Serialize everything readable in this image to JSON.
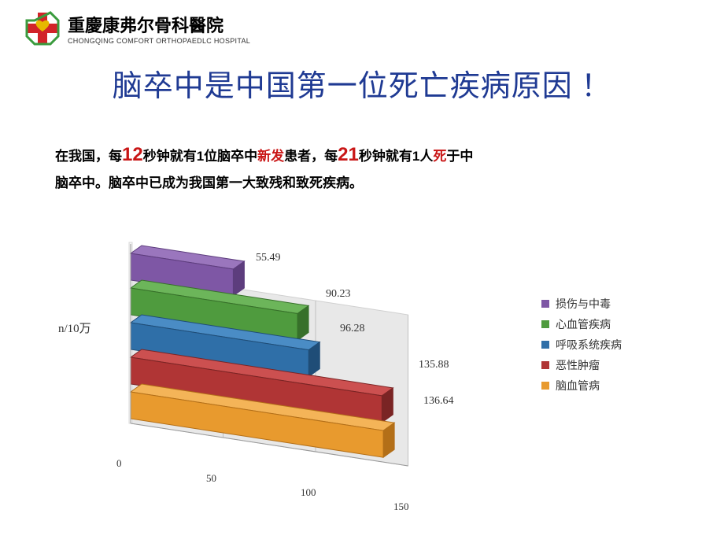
{
  "hospital": {
    "name_cn": "重慶康弗尔骨科醫院",
    "name_en": "CHONGQING COMFORT ORTHOPAEDLC HOSPITAL",
    "logo_colors": {
      "red": "#d22329",
      "green": "#3a9b3e",
      "heart": "#e6b800"
    }
  },
  "title": "脑卒中是中国第一位死亡疾病原因 ！",
  "title_color": "#1f3a93",
  "subtitle": {
    "p1a": "在我国，每",
    "n1": "12",
    "p1b": "秒钟就有1位脑卒中",
    "r1": "新发",
    "p1c": "患者，每",
    "n2": "21",
    "p1d": "秒钟就有1人",
    "r2": "死",
    "p1e": "于中",
    "line2": "脑卒中。脑卒中已成为我国第一大致残和致死疾病。",
    "red_color": "#c91616"
  },
  "chart": {
    "type": "3d-horizontal-bar",
    "ylabel": "n/10万",
    "xlim": [
      0,
      150
    ],
    "xticks": [
      0,
      50,
      100,
      150
    ],
    "background_color": "#ffffff",
    "floor_color": "#e8e8e8",
    "wall_color": "#f5f5f5",
    "grid_color": "#bfbfbf",
    "series": [
      {
        "label": "损伤与中毒",
        "value": 55.49,
        "color": "#7e57a5",
        "top": "#9a76bd",
        "side": "#5d3d7d"
      },
      {
        "label": "心血管疾病",
        "value": 90.23,
        "color": "#4f9b3e",
        "top": "#6cb55a",
        "side": "#37702a"
      },
      {
        "label": "呼吸系统疾病",
        "value": 96.28,
        "color": "#2f6fa8",
        "top": "#4a8cc5",
        "side": "#1f4d77"
      },
      {
        "label": "恶性肿瘤",
        "value": 135.88,
        "color": "#b03535",
        "top": "#cc5050",
        "side": "#7a2424"
      },
      {
        "label": "脑血管病",
        "value": 136.64,
        "color": "#e89a2e",
        "top": "#f4b458",
        "side": "#b36f18"
      }
    ],
    "bar_depth": 30,
    "value_fontsize": 14,
    "label_fontsize": 14
  }
}
